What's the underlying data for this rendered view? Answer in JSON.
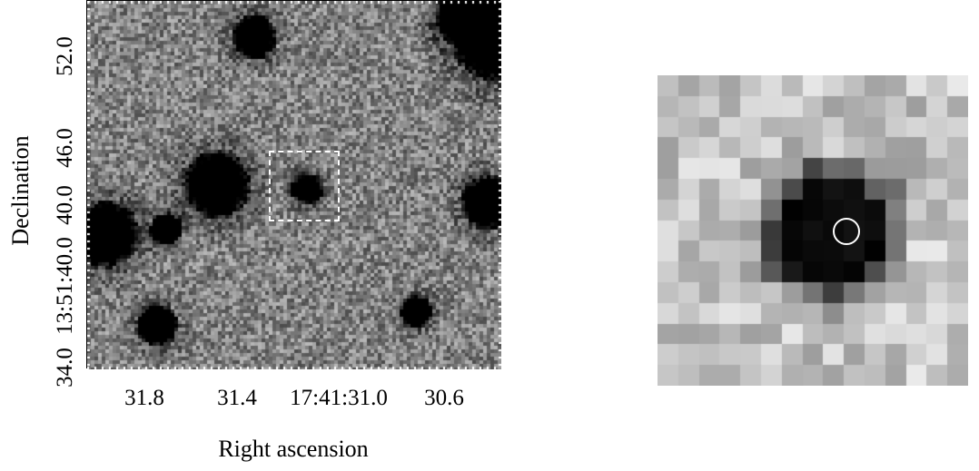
{
  "figure": {
    "xlabel": "Right ascension",
    "ylabel": "Declination",
    "x_ticks": [
      "31.8",
      "31.4",
      "17:41:31.0",
      "30.6"
    ],
    "y_ticks": [
      "52.0",
      "46.0",
      "40.0",
      "13:51:40.0",
      "34.0"
    ]
  },
  "colors": {
    "background": "#ffffff",
    "noise_mid": "#8a8a8a",
    "source": "#000000",
    "marker": "#ffffff"
  }
}
